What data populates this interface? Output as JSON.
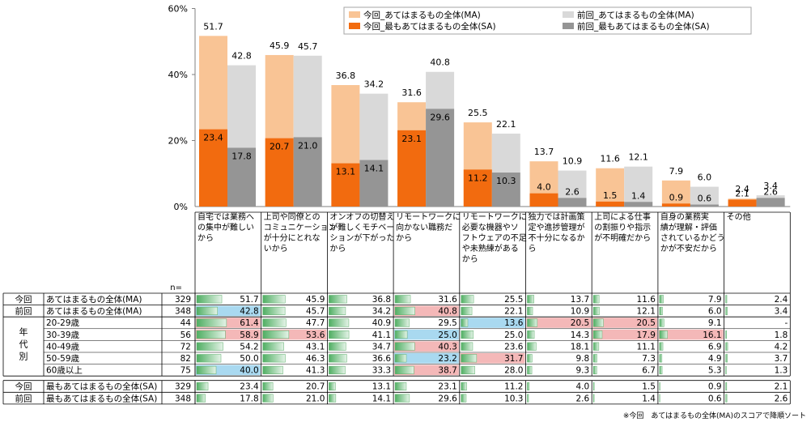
{
  "chart_data": {
    "type": "bar",
    "y_axis": {
      "ticks": [
        "0%",
        "20%",
        "40%",
        "60%"
      ],
      "ylim": [
        0,
        60
      ]
    },
    "categories": [
      "自宅では業務への集中が難しいから",
      "上司や同僚とのコミュニケーションが十分にとれないから",
      "オンオフの切替えが難しくモチベーションが下がったから",
      "リモートワークに向かない職務だから",
      "リモートワークに必要な機器やソフトウェアの不足や未熟練があるから",
      "独力では計画策定や進捗管理が不十分になるから",
      "上司による仕事の割振りや指示が不明確だから",
      "自身の業務実績が理解・評価されているかどうかが不安だから",
      "その他"
    ],
    "category_lines": [
      [
        "自宅では業務へ",
        "の集中が難しい",
        "から"
      ],
      [
        "上司や同僚との",
        "コミュニケーション",
        "が十分にとれな",
        "いから"
      ],
      [
        "オンオフの切替え",
        "が難しくモチベー",
        "ションが下がった",
        "から"
      ],
      [
        "リモートワークに",
        "向かない職務だ",
        "から"
      ],
      [
        "リモートワークに",
        "必要な機器やソ",
        "フトウェアの不足",
        "や未熟練がある",
        "から"
      ],
      [
        "独力では計画策",
        "定や進捗管理が",
        "不十分になるか",
        "ら"
      ],
      [
        "上司による仕事",
        "の割振りや指示",
        "が不明確だから"
      ],
      [
        "自身の業務実",
        "績が理解・評価",
        "されているかどう",
        "かが不安だから"
      ],
      [
        "その他"
      ]
    ],
    "series": [
      {
        "name": "今回_あてはまるもの全体(MA)",
        "color": "#F9C495",
        "values": [
          51.7,
          45.9,
          36.8,
          31.6,
          25.5,
          13.7,
          11.6,
          7.9,
          2.4
        ],
        "labels": [
          "51.7",
          "45.9",
          "36.8",
          "31.6",
          "25.5",
          "13.7",
          "11.6",
          "7.9",
          "2.4"
        ]
      },
      {
        "name": "前回_あてはまるもの全体(MA)",
        "color": "#D9D9D9",
        "values": [
          42.8,
          45.7,
          34.2,
          40.8,
          22.1,
          10.9,
          12.1,
          6.0,
          3.4
        ],
        "labels": [
          "42.8",
          "45.7",
          "34.2",
          "40.8",
          "22.1",
          "10.9",
          "12.1",
          "6.0",
          "3.4"
        ]
      },
      {
        "name": "今回_最もあてはまるもの全体(SA)",
        "color": "#F26B0F",
        "values": [
          23.4,
          20.7,
          13.1,
          23.1,
          11.2,
          4.0,
          1.5,
          0.9,
          2.1
        ],
        "labels": [
          "23.4",
          "20.7",
          "13.1",
          "23.1",
          "11.2",
          "4.0",
          "1.5",
          "0.9",
          "2.1"
        ]
      },
      {
        "name": "前回_最もあてはまるもの全体(SA)",
        "color": "#959595",
        "values": [
          17.8,
          21.0,
          14.1,
          29.6,
          10.3,
          2.6,
          1.4,
          0.6,
          2.6
        ],
        "labels": [
          "17.8",
          "21.0",
          "14.1",
          "29.6",
          "10.3",
          "2.6",
          "1.4",
          "0.6",
          "2.6"
        ]
      }
    ],
    "legend": {
      "placement": "top-right",
      "entries": [
        {
          "label": "今回_あてはまるもの全体(MA)",
          "color": "#F9C495"
        },
        {
          "label": "前回_あてはまるもの全体(MA)",
          "color": "#D9D9D9"
        },
        {
          "label": "今回_最もあてはまるもの全体(SA)",
          "color": "#F26B0F"
        },
        {
          "label": "前回_最もあてはまるもの全体(SA)",
          "color": "#959595"
        }
      ]
    },
    "table": {
      "n_header": "n=",
      "group_label": "年代別",
      "rows": [
        {
          "group": "今回",
          "label": "あてはまるもの全体(MA)",
          "n": "329",
          "section": "top",
          "values": [
            "51.7",
            "45.9",
            "36.8",
            "31.6",
            "25.5",
            "13.7",
            "11.6",
            "7.9",
            "2.4"
          ],
          "numbers": [
            51.7,
            45.9,
            36.8,
            31.6,
            25.5,
            13.7,
            11.6,
            7.9,
            2.4
          ],
          "highlight": [
            "",
            "",
            "",
            "",
            "",
            "",
            "",
            "",
            ""
          ]
        },
        {
          "group": "前回",
          "label": "あてはまるもの全体(MA)",
          "n": "348",
          "section": "top",
          "values": [
            "42.8",
            "45.7",
            "34.2",
            "40.8",
            "22.1",
            "10.9",
            "12.1",
            "6.0",
            "3.4"
          ],
          "numbers": [
            42.8,
            45.7,
            34.2,
            40.8,
            22.1,
            10.9,
            12.1,
            6.0,
            3.4
          ],
          "highlight": [
            "blue",
            "",
            "",
            "red",
            "",
            "",
            "",
            "",
            ""
          ]
        },
        {
          "group": "",
          "label": "20-29歳",
          "n": "44",
          "section": "age",
          "values": [
            "61.4",
            "47.7",
            "40.9",
            "29.5",
            "13.6",
            "20.5",
            "20.5",
            "9.1",
            "-"
          ],
          "numbers": [
            61.4,
            47.7,
            40.9,
            29.5,
            13.6,
            20.5,
            20.5,
            9.1,
            0
          ],
          "highlight": [
            "red",
            "",
            "",
            "",
            "blue",
            "red",
            "red",
            "",
            ""
          ]
        },
        {
          "group": "",
          "label": "30-39歳",
          "n": "56",
          "section": "age",
          "values": [
            "58.9",
            "53.6",
            "41.1",
            "25.0",
            "25.0",
            "14.3",
            "17.9",
            "16.1",
            "1.8"
          ],
          "numbers": [
            58.9,
            53.6,
            41.1,
            25.0,
            25.0,
            14.3,
            17.9,
            16.1,
            1.8
          ],
          "highlight": [
            "red",
            "red",
            "",
            "blue",
            "",
            "",
            "red",
            "red",
            ""
          ]
        },
        {
          "group": "",
          "label": "40-49歳",
          "n": "72",
          "section": "age",
          "values": [
            "54.2",
            "43.1",
            "34.7",
            "40.3",
            "23.6",
            "18.1",
            "11.1",
            "6.9",
            "4.2"
          ],
          "numbers": [
            54.2,
            43.1,
            34.7,
            40.3,
            23.6,
            18.1,
            11.1,
            6.9,
            4.2
          ],
          "highlight": [
            "",
            "",
            "",
            "red",
            "",
            "",
            "",
            "",
            ""
          ]
        },
        {
          "group": "",
          "label": "50-59歳",
          "n": "82",
          "section": "age",
          "values": [
            "50.0",
            "46.3",
            "36.6",
            "23.2",
            "31.7",
            "9.8",
            "7.3",
            "4.9",
            "3.7"
          ],
          "numbers": [
            50.0,
            46.3,
            36.6,
            23.2,
            31.7,
            9.8,
            7.3,
            4.9,
            3.7
          ],
          "highlight": [
            "",
            "",
            "",
            "blue",
            "red",
            "",
            "",
            "",
            ""
          ]
        },
        {
          "group": "",
          "label": "60歳以上",
          "n": "75",
          "section": "age",
          "values": [
            "40.0",
            "41.3",
            "33.3",
            "38.7",
            "28.0",
            "9.3",
            "6.7",
            "5.3",
            "1.3"
          ],
          "numbers": [
            40.0,
            41.3,
            33.3,
            38.7,
            28.0,
            9.3,
            6.7,
            5.3,
            1.3
          ],
          "highlight": [
            "blue",
            "",
            "",
            "red",
            "",
            "",
            "",
            "",
            ""
          ]
        },
        {
          "group": "今回",
          "label": "最もあてはまるもの全体(SA)",
          "n": "329",
          "section": "bottom",
          "values": [
            "23.4",
            "20.7",
            "13.1",
            "23.1",
            "11.2",
            "4.0",
            "1.5",
            "0.9",
            "2.1"
          ],
          "numbers": [
            23.4,
            20.7,
            13.1,
            23.1,
            11.2,
            4.0,
            1.5,
            0.9,
            2.1
          ],
          "highlight": [
            "",
            "",
            "",
            "",
            "",
            "",
            "",
            "",
            ""
          ]
        },
        {
          "group": "前回",
          "label": "最もあてはまるもの全体(SA)",
          "n": "348",
          "section": "bottom",
          "values": [
            "17.8",
            "21.0",
            "14.1",
            "29.6",
            "10.3",
            "2.6",
            "1.4",
            "0.6",
            "2.6"
          ],
          "numbers": [
            17.8,
            21.0,
            14.1,
            29.6,
            10.3,
            2.6,
            1.4,
            0.6,
            2.6
          ],
          "highlight": [
            "",
            "",
            "",
            "",
            "",
            "",
            "",
            "",
            ""
          ]
        }
      ]
    }
  },
  "footnote": "※今回　あてはまるもの全体(MA)のスコアで降順ソート"
}
